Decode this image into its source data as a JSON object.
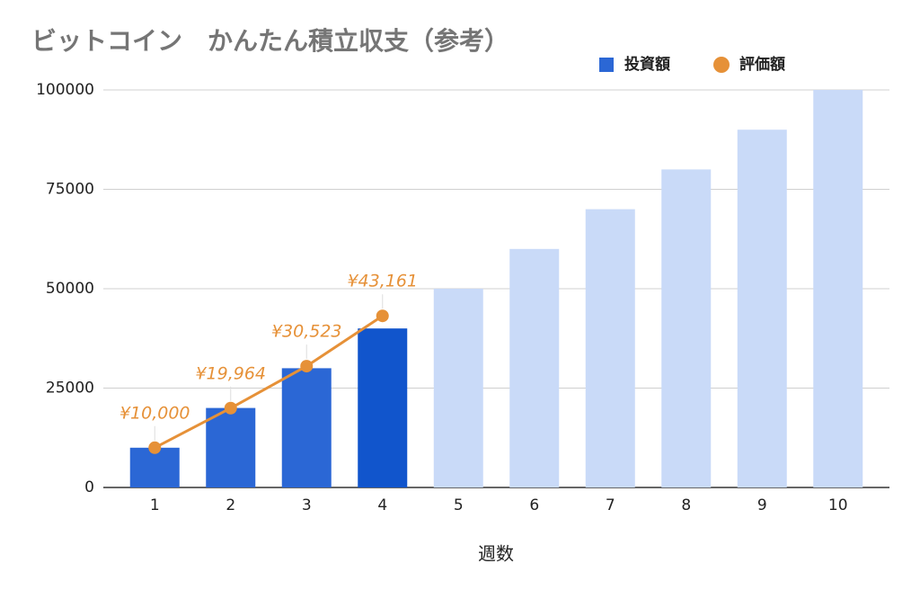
{
  "chart_data": {
    "type": "bar",
    "title": "ビットコイン　かんたん積立収支（参考）",
    "xlabel": "週数",
    "categories": [
      "1",
      "2",
      "3",
      "4",
      "5",
      "6",
      "7",
      "8",
      "9",
      "10"
    ],
    "series": [
      {
        "name": "投資額",
        "type": "bar",
        "color": "#2b67d5",
        "colors": [
          "#2b67d5",
          "#2b67d5",
          "#2b67d5",
          "#1155cc",
          "#c9daf8",
          "#c9daf8",
          "#c9daf8",
          "#c9daf8",
          "#c9daf8",
          "#c9daf8"
        ],
        "values": [
          10000,
          20000,
          30000,
          40000,
          50000,
          60000,
          70000,
          80000,
          90000,
          100000
        ]
      },
      {
        "name": "評価額",
        "type": "line",
        "color": "#e69138",
        "values": [
          10000,
          19964,
          30523,
          43161,
          null,
          null,
          null,
          null,
          null,
          null
        ],
        "value_labels": [
          "¥10,000",
          "¥19,964",
          "¥30,523",
          "¥43,161",
          null,
          null,
          null,
          null,
          null,
          null
        ]
      }
    ],
    "ylim": [
      0,
      100000
    ],
    "yticks": [
      0,
      25000,
      50000,
      75000,
      100000
    ],
    "grid": true,
    "legend": "top"
  }
}
